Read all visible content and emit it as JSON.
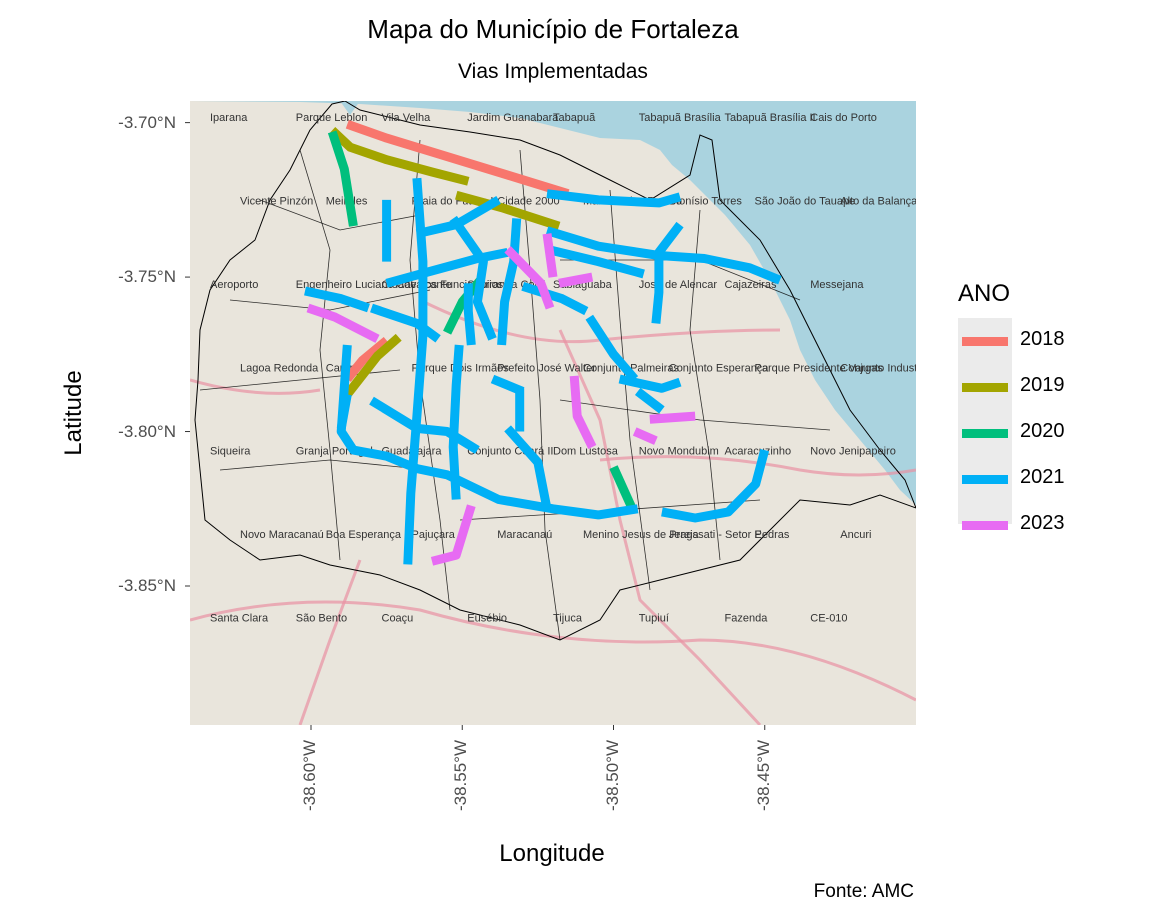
{
  "chart": {
    "title": "Mapa do Município de Fortaleza",
    "subtitle": "Vias Implementadas",
    "xlabel": "Longitude",
    "ylabel": "Latitude",
    "caption": "Fonte: AMC",
    "legend_title": "ANO"
  },
  "chart_data": {
    "type": "map",
    "title": "Mapa do Município de Fortaleza",
    "subtitle": "Vias Implementadas",
    "xlabel": "Longitude",
    "ylabel": "Latitude",
    "xlim": [
      -38.64,
      -38.4
    ],
    "ylim": [
      -3.895,
      -3.693
    ],
    "x_ticks": [
      {
        "value": -38.6,
        "label": "-38.60°W"
      },
      {
        "value": -38.55,
        "label": "-38.55°W"
      },
      {
        "value": -38.5,
        "label": "-38.50°W"
      },
      {
        "value": -38.45,
        "label": "-38.45°W"
      }
    ],
    "y_ticks": [
      {
        "value": -3.7,
        "label": "-3.70°N"
      },
      {
        "value": -3.75,
        "label": "-3.75°N"
      },
      {
        "value": -3.8,
        "label": "-3.80°N"
      },
      {
        "value": -3.85,
        "label": "-3.85°N"
      }
    ],
    "legend": {
      "title": "ANO",
      "placement": "right",
      "entries": [
        {
          "label": "2018",
          "color": "#F8766D"
        },
        {
          "label": "2019",
          "color": "#A3A500"
        },
        {
          "label": "2020",
          "color": "#00BF7D"
        },
        {
          "label": "2021",
          "color": "#00B0F6"
        },
        {
          "label": "2023",
          "color": "#E76BF3"
        }
      ]
    },
    "basemap": {
      "sea_color": "#aad3df",
      "land_color": "#e9e5dc",
      "place_labels": [
        "Iparana",
        "Parque Leblon",
        "Vila Velha",
        "Jardim Guanabara",
        "Tabapuã",
        "Tabapuã Brasília",
        "Tabapuã Brasília II",
        "Cais do Porto",
        "Vicente Pinzón",
        "Meireles",
        "Praia do Futuro I",
        "Cidade 2000",
        "Manuel Dias Branco",
        "Dionísio Torres",
        "São João do Tauape",
        "Alto da Balança",
        "Aeroporto",
        "Engenheiro Luciano Cavalcante",
        "Cidade dos Funcionários",
        "Sapiranga Coité",
        "Sabiaguaba",
        "José de Alencar",
        "Cajazeiras",
        "Messejana",
        "Lagoa Redonda",
        "Cararu",
        "Parque Dois Irmãos",
        "Prefeito José Walter",
        "Conjunto Palmeiras",
        "Conjunto Esperança",
        "Parque Presidente Vargas",
        "Conjunto Industrial",
        "Siqueira",
        "Granja Portugal",
        "Guadalajara",
        "Conjunto Ceará II",
        "Dom Lustosa",
        "Novo Mondubim",
        "Acaracuzinho",
        "Novo Jenipapeiro",
        "Novo Maracanaú",
        "Boa Esperança",
        "Pajuçara",
        "Maracanaú",
        "Menino Jesus de Praga",
        "Jereissati - Setor E",
        "Pedras",
        "Ancuri",
        "Santa Clara",
        "São Bento",
        "Coaçu",
        "Eusébio",
        "Tijuca",
        "Tupiuí",
        "Fazenda",
        "CE-010"
      ]
    },
    "series": [
      {
        "name": "2018",
        "color": "#F8766D",
        "paths": [
          [
            [
              -38.588,
              -3.7005
            ],
            [
              -38.575,
              -3.705
            ],
            [
              -38.555,
              -3.711
            ],
            [
              -38.535,
              -3.717
            ],
            [
              -38.515,
              -3.723
            ]
          ],
          [
            [
              -38.575,
              -3.7705
            ],
            [
              -38.583,
              -3.777
            ],
            [
              -38.588,
              -3.783
            ]
          ]
        ]
      },
      {
        "name": "2019",
        "color": "#A3A500",
        "paths": [
          [
            [
              -38.593,
              -3.7025
            ],
            [
              -38.587,
              -3.708
            ],
            [
              -38.575,
              -3.712
            ],
            [
              -38.56,
              -3.716
            ],
            [
              -38.548,
              -3.719
            ]
          ],
          [
            [
              -38.552,
              -3.7235
            ],
            [
              -38.537,
              -3.7275
            ],
            [
              -38.518,
              -3.7335
            ]
          ],
          [
            [
              -38.571,
              -3.7695
            ],
            [
              -38.578,
              -3.7755
            ],
            [
              -38.588,
              -3.788
            ]
          ]
        ]
      },
      {
        "name": "2020",
        "color": "#00BF7D",
        "paths": [
          [
            [
              -38.593,
              -3.703
            ],
            [
              -38.589,
              -3.715
            ],
            [
              -38.586,
              -3.7335
            ]
          ],
          [
            [
              -38.544,
              -3.751
            ],
            [
              -38.55,
              -3.758
            ],
            [
              -38.555,
              -3.768
            ]
          ],
          [
            [
              -38.5,
              -3.8115
            ],
            [
              -38.494,
              -3.8245
            ]
          ]
        ]
      },
      {
        "name": "2021",
        "color": "#00B0F6",
        "paths": [
          [
            [
              -38.565,
              -3.718
            ],
            [
              -38.563,
              -3.745
            ],
            [
              -38.563,
              -3.769
            ],
            [
              -38.565,
              -3.795
            ],
            [
              -38.567,
              -3.82
            ],
            [
              -38.568,
              -3.843
            ]
          ],
          [
            [
              -38.575,
              -3.725
            ],
            [
              -38.575,
              -3.745
            ]
          ],
          [
            [
              -38.565,
              -3.736
            ],
            [
              -38.552,
              -3.733
            ],
            [
              -38.538,
              -3.725
            ]
          ],
          [
            [
              -38.575,
              -3.752
            ],
            [
              -38.56,
              -3.748
            ],
            [
              -38.545,
              -3.744
            ],
            [
              -38.535,
              -3.742
            ]
          ],
          [
            [
              -38.602,
              -3.7545
            ],
            [
              -38.59,
              -3.757
            ],
            [
              -38.581,
              -3.76
            ]
          ],
          [
            [
              -38.553,
              -3.731
            ],
            [
              -38.543,
              -3.745
            ],
            [
              -38.545,
              -3.758
            ],
            [
              -38.54,
              -3.77
            ]
          ],
          [
            [
              -38.532,
              -3.731
            ],
            [
              -38.533,
              -3.745
            ],
            [
              -38.536,
              -3.758
            ],
            [
              -38.537,
              -3.772
            ]
          ],
          [
            [
              -38.548,
              -3.752
            ],
            [
              -38.548,
              -3.761
            ],
            [
              -38.547,
              -3.772
            ]
          ],
          [
            [
              -38.53,
              -3.753
            ],
            [
              -38.517,
              -3.757
            ],
            [
              -38.509,
              -3.761
            ]
          ],
          [
            [
              -38.58,
              -3.76
            ],
            [
              -38.565,
              -3.765
            ],
            [
              -38.558,
              -3.77
            ]
          ],
          [
            [
              -38.588,
              -3.772
            ],
            [
              -38.59,
              -3.8
            ],
            [
              -38.586,
              -3.806
            ],
            [
              -38.575,
              -3.808
            ],
            [
              -38.565,
              -3.812
            ],
            [
              -38.555,
              -3.814
            ],
            [
              -38.538,
              -3.822
            ],
            [
              -38.52,
              -3.825
            ],
            [
              -38.505,
              -3.827
            ],
            [
              -38.492,
              -3.825
            ]
          ],
          [
            [
              -38.588,
              -3.788
            ],
            [
              -38.59,
              -3.799
            ]
          ],
          [
            [
              -38.58,
              -3.79
            ],
            [
              -38.565,
              -3.799
            ],
            [
              -38.555,
              -3.8
            ],
            [
              -38.545,
              -3.806
            ]
          ],
          [
            [
              -38.551,
              -3.772
            ],
            [
              -38.552,
              -3.785
            ],
            [
              -38.553,
              -3.805
            ],
            [
              -38.552,
              -3.822
            ]
          ],
          [
            [
              -38.54,
              -3.783
            ],
            [
              -38.53,
              -3.787
            ]
          ],
          [
            [
              -38.531,
              -3.786
            ],
            [
              -38.531,
              -3.8
            ]
          ],
          [
            [
              -38.535,
              -3.799
            ],
            [
              -38.525,
              -3.81
            ],
            [
              -38.522,
              -3.825
            ]
          ],
          [
            [
              -38.522,
              -3.723
            ],
            [
              -38.505,
              -3.725
            ],
            [
              -38.485,
              -3.726
            ],
            [
              -38.478,
              -3.724
            ]
          ],
          [
            [
              -38.522,
              -3.735
            ],
            [
              -38.505,
              -3.74
            ],
            [
              -38.485,
              -3.743
            ],
            [
              -38.47,
              -3.744
            ],
            [
              -38.455,
              -3.747
            ],
            [
              -38.445,
              -3.751
            ]
          ],
          [
            [
              -38.522,
              -3.741
            ],
            [
              -38.505,
              -3.745
            ],
            [
              -38.49,
              -3.749
            ]
          ],
          [
            [
              -38.478,
              -3.733
            ],
            [
              -38.485,
              -3.742
            ],
            [
              -38.485,
              -3.755
            ],
            [
              -38.486,
              -3.765
            ]
          ],
          [
            [
              -38.508,
              -3.763
            ],
            [
              -38.5,
              -3.775
            ],
            [
              -38.493,
              -3.783
            ]
          ],
          [
            [
              -38.498,
              -3.783
            ],
            [
              -38.484,
              -3.786
            ],
            [
              -38.478,
              -3.784
            ]
          ],
          [
            [
              -38.492,
              -3.787
            ],
            [
              -38.484,
              -3.793
            ]
          ],
          [
            [
              -38.484,
              -3.826
            ],
            [
              -38.473,
              -3.828
            ],
            [
              -38.462,
              -3.826
            ],
            [
              -38.453,
              -3.817
            ],
            [
              -38.45,
              -3.806
            ]
          ]
        ]
      },
      {
        "name": "2023",
        "color": "#E76BF3",
        "paths": [
          [
            [
              -38.601,
              -3.76
            ],
            [
              -38.592,
              -3.763
            ],
            [
              -38.578,
              -3.77
            ]
          ],
          [
            [
              -38.535,
              -3.741
            ],
            [
              -38.524,
              -3.752
            ],
            [
              -38.521,
              -3.76
            ]
          ],
          [
            [
              -38.522,
              -3.736
            ],
            [
              -38.52,
              -3.75
            ]
          ],
          [
            [
              -38.518,
              -3.752
            ],
            [
              -38.507,
              -3.75
            ]
          ],
          [
            [
              -38.513,
              -3.782
            ],
            [
              -38.512,
              -3.795
            ],
            [
              -38.507,
              -3.805
            ]
          ],
          [
            [
              -38.547,
              -3.824
            ],
            [
              -38.552,
              -3.84
            ],
            [
              -38.56,
              -3.842
            ]
          ],
          [
            [
              -38.488,
              -3.796
            ],
            [
              -38.473,
              -3.795
            ]
          ],
          [
            [
              -38.493,
              -3.8
            ],
            [
              -38.486,
              -3.803
            ]
          ]
        ]
      }
    ]
  }
}
